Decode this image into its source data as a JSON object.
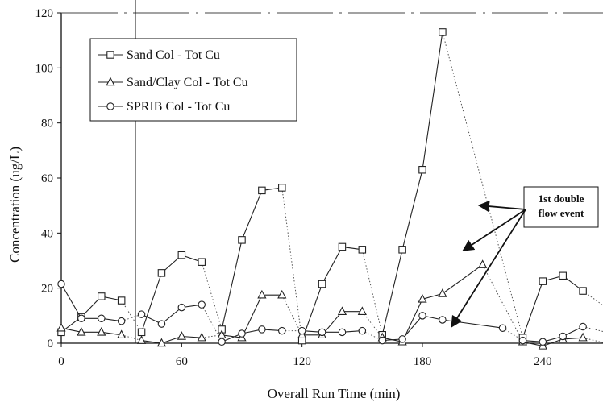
{
  "chart_data": {
    "type": "line",
    "title": "",
    "xlabel": "Overall Run Time (min)",
    "ylabel": "Concentration (ug/L)",
    "xlim": [
      0,
      270
    ],
    "ylim": [
      0,
      120
    ],
    "xticks": [
      0,
      60,
      120,
      180,
      240
    ],
    "yticks": [
      0,
      20,
      40,
      60,
      80,
      100,
      120
    ],
    "grid": false,
    "legend_position": "top-left",
    "series": [
      {
        "name": "Sand Col - Tot Cu",
        "marker": "square",
        "color": "#222222",
        "segments": [
          [
            [
              0,
              4
            ],
            [
              10,
              9.5
            ],
            [
              20,
              17
            ],
            [
              30,
              15.5
            ]
          ],
          [
            [
              40,
              4
            ],
            [
              50,
              25.5
            ],
            [
              60,
              32
            ],
            [
              70,
              29.5
            ]
          ],
          [
            [
              80,
              5
            ],
            [
              90,
              37.5
            ],
            [
              100,
              55.5
            ],
            [
              110,
              56.5
            ]
          ],
          [
            [
              120,
              1
            ],
            [
              130,
              21.5
            ],
            [
              140,
              35
            ],
            [
              150,
              34
            ]
          ],
          [
            [
              160,
              3
            ],
            [
              170,
              34
            ],
            [
              180,
              63
            ],
            [
              190,
              113
            ]
          ],
          [
            [
              230,
              2
            ],
            [
              240,
              22.5
            ],
            [
              250,
              24.5
            ],
            [
              260,
              19
            ]
          ]
        ]
      },
      {
        "name": "Sand/Clay Col - Tot Cu",
        "marker": "triangle",
        "color": "#222222",
        "segments": [
          [
            [
              0,
              5.5
            ],
            [
              10,
              4
            ],
            [
              20,
              4
            ],
            [
              30,
              3
            ]
          ],
          [
            [
              40,
              1
            ],
            [
              50,
              0
            ],
            [
              60,
              2.5
            ],
            [
              70,
              2
            ]
          ],
          [
            [
              80,
              3
            ],
            [
              90,
              2
            ],
            [
              100,
              17.5
            ],
            [
              110,
              17.5
            ]
          ],
          [
            [
              120,
              3
            ],
            [
              130,
              3
            ],
            [
              140,
              11.5
            ],
            [
              150,
              11.5
            ]
          ],
          [
            [
              160,
              2
            ],
            [
              170,
              0.5
            ],
            [
              180,
              16
            ],
            [
              190,
              18
            ],
            [
              210,
              28.5
            ]
          ],
          [
            [
              230,
              0.5
            ],
            [
              240,
              -1
            ],
            [
              250,
              1.5
            ],
            [
              260,
              2
            ]
          ]
        ]
      },
      {
        "name": "SPRIB Col - Tot Cu",
        "marker": "circle",
        "color": "#222222",
        "segments": [
          [
            [
              0,
              21.5
            ],
            [
              10,
              9
            ],
            [
              20,
              9
            ],
            [
              30,
              8
            ]
          ],
          [
            [
              40,
              10.5
            ],
            [
              50,
              7
            ],
            [
              60,
              13
            ],
            [
              70,
              14
            ]
          ],
          [
            [
              80,
              0.5
            ],
            [
              90,
              3.5
            ],
            [
              100,
              5
            ],
            [
              110,
              4.5
            ]
          ],
          [
            [
              120,
              4.5
            ],
            [
              130,
              4
            ],
            [
              140,
              4
            ],
            [
              150,
              4.5
            ]
          ],
          [
            [
              160,
              1
            ],
            [
              170,
              1.5
            ],
            [
              180,
              10
            ],
            [
              190,
              8.5
            ],
            [
              220,
              5.5
            ]
          ],
          [
            [
              230,
              1
            ],
            [
              240,
              0.5
            ],
            [
              250,
              2.5
            ],
            [
              260,
              6
            ]
          ]
        ]
      }
    ],
    "annotation": {
      "text_lines": [
        "1st double",
        "flow event"
      ],
      "arrow_targets": [
        [
          209,
          50
        ],
        [
          201,
          34
        ],
        [
          195,
          6.5
        ]
      ]
    }
  }
}
